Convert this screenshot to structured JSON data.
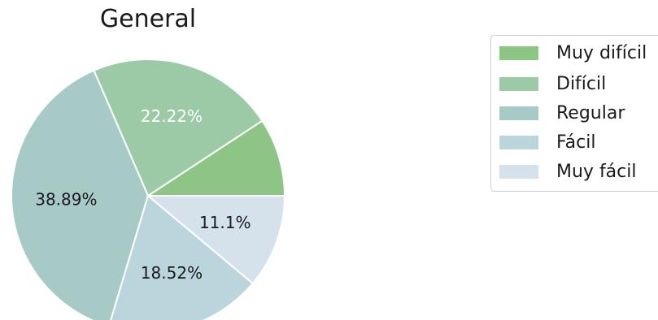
{
  "chart_data": {
    "type": "pie",
    "title": "General",
    "slices": [
      {
        "label": "Muy difícil",
        "value": 9.26,
        "color": "#8dc584",
        "data_label": ""
      },
      {
        "label": "Difícil",
        "value": 22.22,
        "color": "#9ccaa6",
        "data_label": "22.22%"
      },
      {
        "label": "Regular",
        "value": 38.89,
        "color": "#a8cac6",
        "data_label": "38.89%"
      },
      {
        "label": "Fácil",
        "value": 18.52,
        "color": "#bad5dc",
        "data_label": "18.52%"
      },
      {
        "label": "Muy fácil",
        "value": 11.1,
        "color": "#d5e2ec",
        "data_label": "11.1%"
      }
    ],
    "legend_position": "upper-right"
  }
}
